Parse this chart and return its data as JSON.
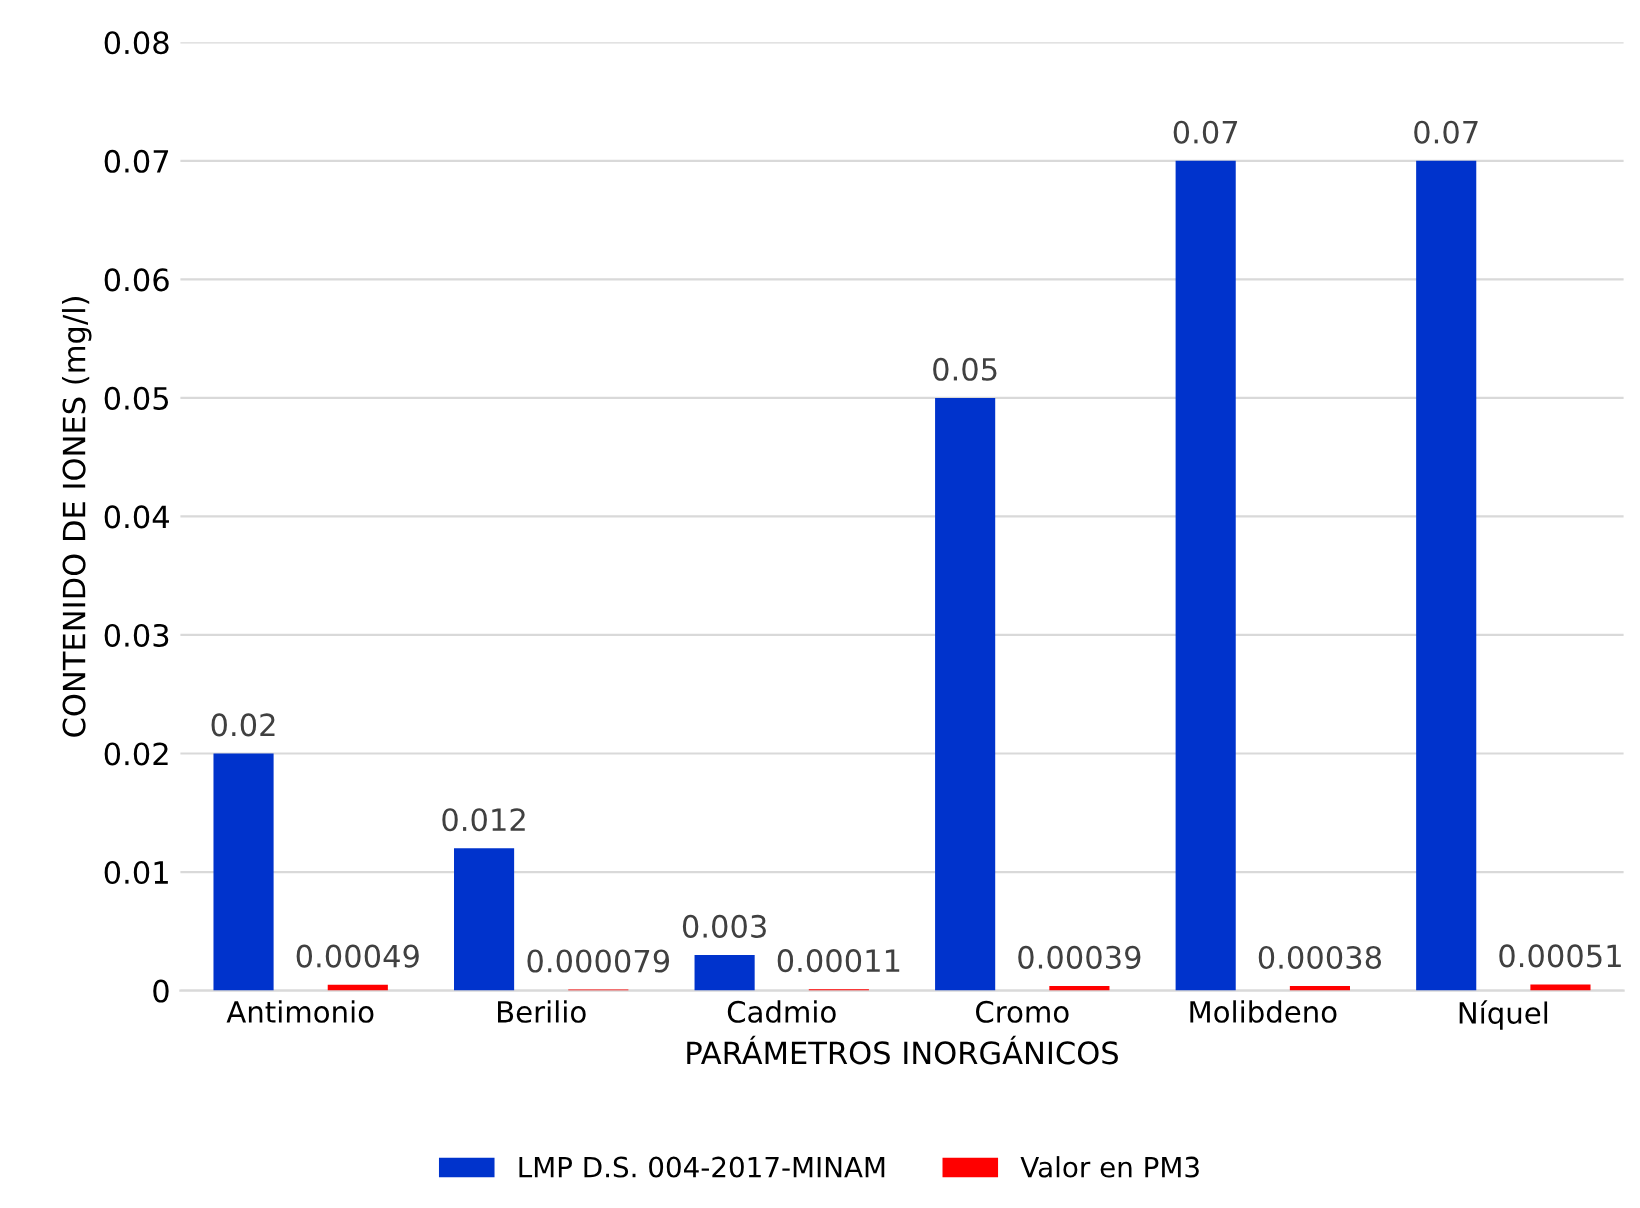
{
  "chart_data": {
    "type": "bar",
    "xlabel": "PARÁMETROS INORGÁNICOS",
    "ylabel": "CONTENIDO DE IONES (mg/l)",
    "categories": [
      "Antimonio",
      "Berilio",
      "Cadmio",
      "Cromo",
      "Molibdeno",
      "Níquel"
    ],
    "series": [
      {
        "name": "LMP D.S. 004-2017-MINAM",
        "color": "#0033cc",
        "values": [
          0.02,
          0.012,
          0.003,
          0.05,
          0.07,
          0.07
        ],
        "value_labels": [
          "0.02",
          "0.012",
          "0.003",
          "0.05",
          "0.07",
          "0.07"
        ]
      },
      {
        "name": "Valor en PM3",
        "color": "#ff0000",
        "values": [
          0.00049,
          7.9e-05,
          0.00011,
          0.00039,
          0.00038,
          0.00051
        ],
        "value_labels": [
          "0.00049",
          "0.000079",
          "0.00011",
          "0.00039",
          "0.00038",
          "0.00051"
        ]
      }
    ],
    "ylim": [
      0,
      0.08
    ],
    "yticks": [
      0,
      0.01,
      0.02,
      0.03,
      0.04,
      0.05,
      0.06,
      0.07,
      0.08
    ],
    "grid": "y",
    "legend": "bottom"
  }
}
